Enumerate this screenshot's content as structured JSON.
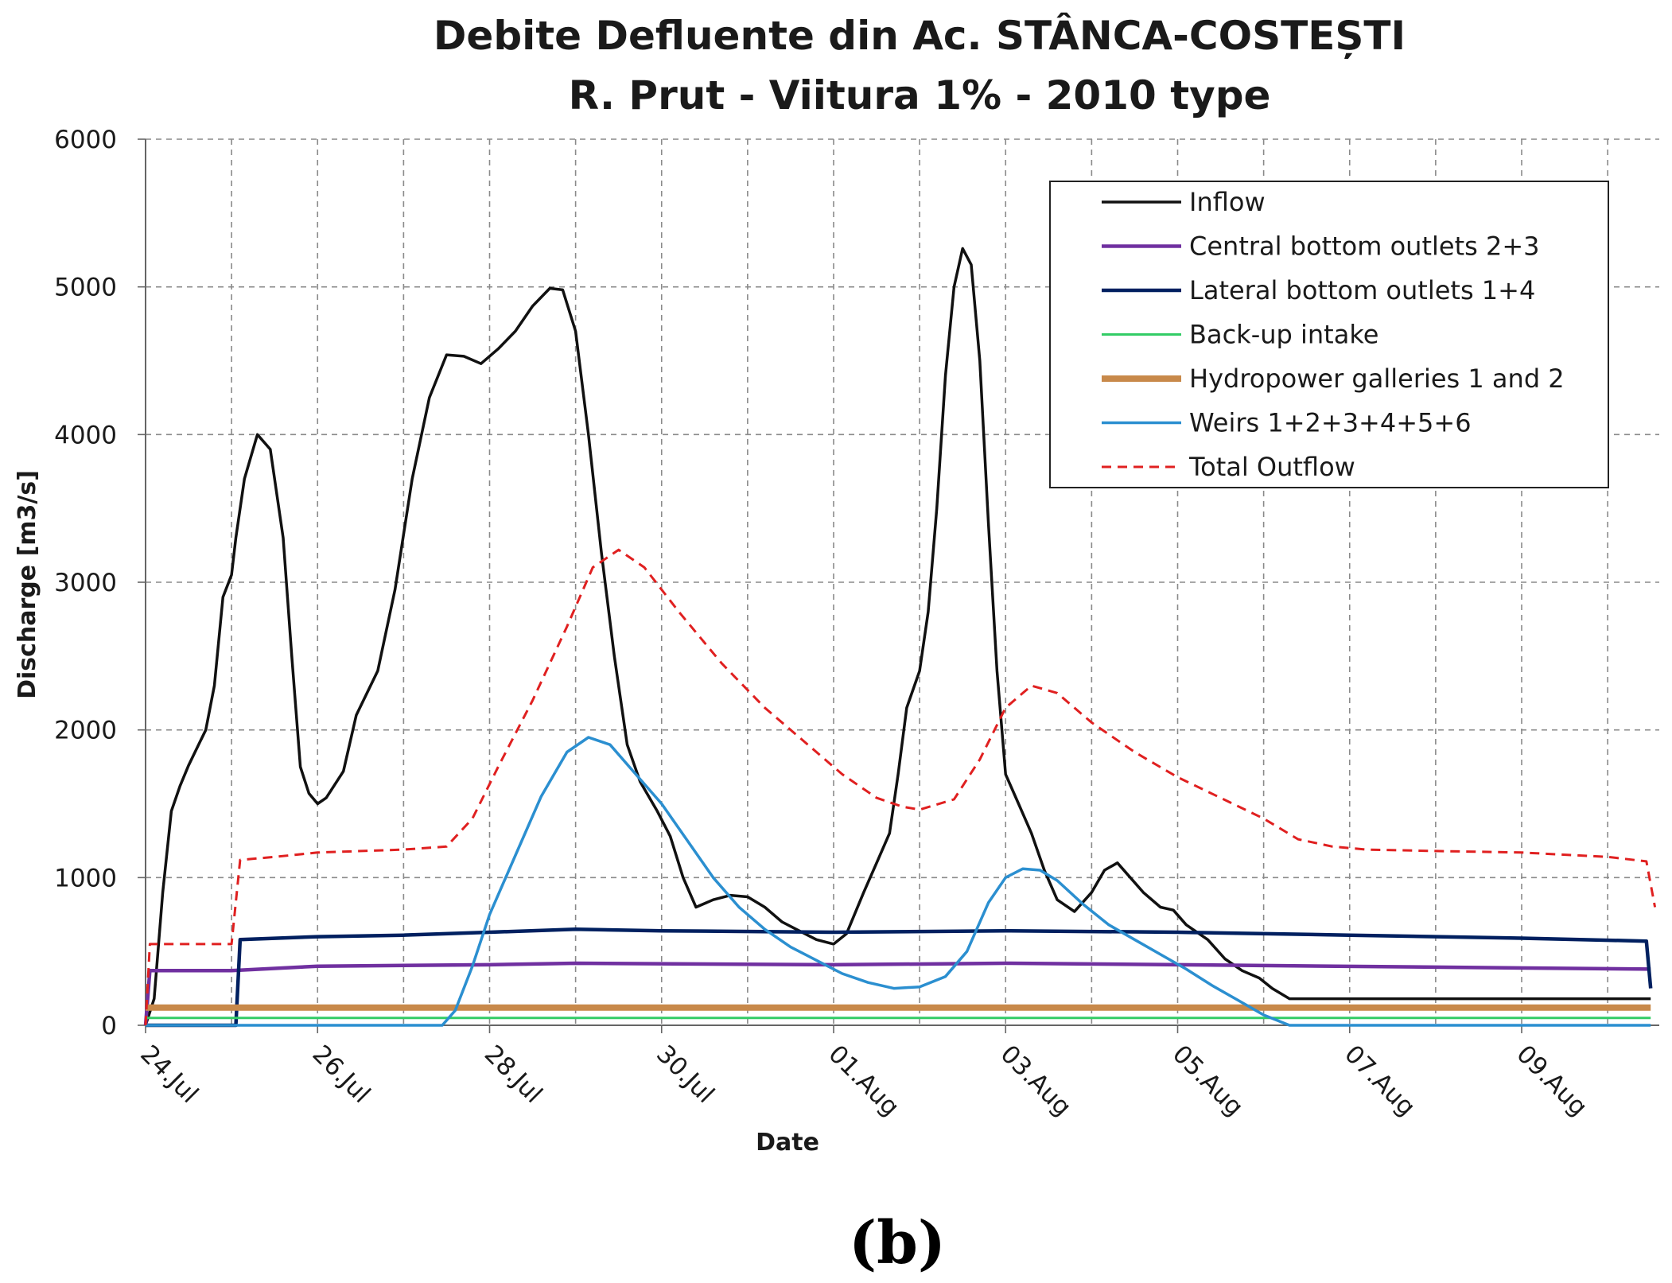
{
  "chart_data": {
    "type": "line",
    "title": "Debite Defluente din Ac. STÂNCA-COSTEȘTI",
    "subtitle": "R. Prut - Viitura 1% - 2010 type",
    "xlabel": "Date",
    "ylabel": "Discharge [m3/s]",
    "caption": "(b)",
    "xlim": [
      0,
      17.6
    ],
    "ylim": [
      0,
      6000
    ],
    "grid": true,
    "legend_position": "top-right",
    "yticks": [
      {
        "value": 0,
        "label": "0"
      },
      {
        "value": 1000,
        "label": "1000"
      },
      {
        "value": 2000,
        "label": "2000"
      },
      {
        "value": 3000,
        "label": "3000"
      },
      {
        "value": 4000,
        "label": "4000"
      },
      {
        "value": 5000,
        "label": "5000"
      },
      {
        "value": 6000,
        "label": "6000"
      }
    ],
    "xticks": [
      {
        "value": 0,
        "label": "24.Jul"
      },
      {
        "value": 2,
        "label": "26.Jul"
      },
      {
        "value": 4,
        "label": "28.Jul"
      },
      {
        "value": 6,
        "label": "30.Jul"
      },
      {
        "value": 8,
        "label": "01.Aug"
      },
      {
        "value": 10,
        "label": "03.Aug"
      },
      {
        "value": 12,
        "label": "05.Aug"
      },
      {
        "value": 14,
        "label": "07.Aug"
      },
      {
        "value": 16,
        "label": "09.Aug"
      }
    ],
    "x_minor_grid": [
      1,
      3,
      5,
      7,
      9,
      11,
      13,
      15,
      17
    ],
    "x_units": "days from 24.Jul",
    "series": [
      {
        "name": "Inflow",
        "color": "#111111",
        "width": 3.5,
        "dash": "",
        "points": [
          [
            0,
            0
          ],
          [
            0.1,
            180
          ],
          [
            0.2,
            900
          ],
          [
            0.3,
            1450
          ],
          [
            0.4,
            1620
          ],
          [
            0.5,
            1760
          ],
          [
            0.6,
            1880
          ],
          [
            0.7,
            2000
          ],
          [
            0.8,
            2300
          ],
          [
            0.9,
            2900
          ],
          [
            1.0,
            3050
          ],
          [
            1.05,
            3300
          ],
          [
            1.15,
            3700
          ],
          [
            1.3,
            4000
          ],
          [
            1.45,
            3900
          ],
          [
            1.6,
            3300
          ],
          [
            1.7,
            2500
          ],
          [
            1.8,
            1750
          ],
          [
            1.9,
            1570
          ],
          [
            2.0,
            1500
          ],
          [
            2.1,
            1540
          ],
          [
            2.3,
            1720
          ],
          [
            2.45,
            2100
          ],
          [
            2.7,
            2400
          ],
          [
            2.9,
            2950
          ],
          [
            3.1,
            3700
          ],
          [
            3.3,
            4250
          ],
          [
            3.5,
            4540
          ],
          [
            3.7,
            4530
          ],
          [
            3.9,
            4480
          ],
          [
            4.1,
            4580
          ],
          [
            4.3,
            4700
          ],
          [
            4.5,
            4870
          ],
          [
            4.7,
            4990
          ],
          [
            4.85,
            4980
          ],
          [
            5.0,
            4700
          ],
          [
            5.15,
            4000
          ],
          [
            5.3,
            3200
          ],
          [
            5.45,
            2500
          ],
          [
            5.6,
            1900
          ],
          [
            5.75,
            1650
          ],
          [
            5.95,
            1450
          ],
          [
            6.1,
            1280
          ],
          [
            6.25,
            1000
          ],
          [
            6.4,
            800
          ],
          [
            6.6,
            850
          ],
          [
            6.8,
            880
          ],
          [
            7.0,
            870
          ],
          [
            7.2,
            800
          ],
          [
            7.4,
            700
          ],
          [
            7.6,
            640
          ],
          [
            7.8,
            580
          ],
          [
            8.0,
            550
          ],
          [
            8.15,
            620
          ],
          [
            8.35,
            900
          ],
          [
            8.5,
            1100
          ],
          [
            8.65,
            1300
          ],
          [
            8.75,
            1700
          ],
          [
            8.85,
            2150
          ],
          [
            9.0,
            2400
          ],
          [
            9.1,
            2800
          ],
          [
            9.2,
            3500
          ],
          [
            9.3,
            4400
          ],
          [
            9.4,
            5000
          ],
          [
            9.5,
            5260
          ],
          [
            9.6,
            5150
          ],
          [
            9.7,
            4500
          ],
          [
            9.8,
            3400
          ],
          [
            9.9,
            2400
          ],
          [
            10.0,
            1700
          ],
          [
            10.15,
            1500
          ],
          [
            10.3,
            1300
          ],
          [
            10.45,
            1050
          ],
          [
            10.6,
            850
          ],
          [
            10.8,
            770
          ],
          [
            11.0,
            900
          ],
          [
            11.15,
            1050
          ],
          [
            11.3,
            1100
          ],
          [
            11.45,
            1000
          ],
          [
            11.6,
            900
          ],
          [
            11.8,
            800
          ],
          [
            11.95,
            780
          ],
          [
            12.1,
            680
          ],
          [
            12.35,
            580
          ],
          [
            12.55,
            450
          ],
          [
            12.75,
            370
          ],
          [
            12.95,
            320
          ],
          [
            13.1,
            250
          ],
          [
            13.3,
            180
          ],
          [
            14.0,
            180
          ],
          [
            17.5,
            180
          ]
        ]
      },
      {
        "name": "Central bottom outlets 2+3",
        "color": "#7030a0",
        "width": 4.5,
        "dash": "",
        "points": [
          [
            0,
            0
          ],
          [
            0.05,
            370
          ],
          [
            1.0,
            370
          ],
          [
            2.0,
            400
          ],
          [
            4.0,
            410
          ],
          [
            5.0,
            420
          ],
          [
            8.0,
            410
          ],
          [
            10.0,
            420
          ],
          [
            12.0,
            410
          ],
          [
            17.5,
            380
          ]
        ]
      },
      {
        "name": "Lateral bottom outlets 1+4",
        "color": "#002060",
        "width": 4.5,
        "dash": "",
        "points": [
          [
            0,
            0
          ],
          [
            1.05,
            0
          ],
          [
            1.1,
            580
          ],
          [
            2.0,
            600
          ],
          [
            3.0,
            610
          ],
          [
            4.0,
            630
          ],
          [
            5.0,
            650
          ],
          [
            6.0,
            640
          ],
          [
            8.0,
            630
          ],
          [
            10.0,
            640
          ],
          [
            12.0,
            630
          ],
          [
            14.0,
            610
          ],
          [
            16.0,
            590
          ],
          [
            17.45,
            570
          ],
          [
            17.5,
            250
          ]
        ]
      },
      {
        "name": "Back-up intake",
        "color": "#33cc66",
        "width": 3,
        "dash": "",
        "points": [
          [
            0,
            50
          ],
          [
            17.5,
            50
          ]
        ]
      },
      {
        "name": "Hydropower galleries 1 and 2",
        "color": "#c8894a",
        "width": 8,
        "dash": "",
        "points": [
          [
            0,
            120
          ],
          [
            17.5,
            120
          ]
        ]
      },
      {
        "name": "Weirs 1+2+3+4+5+6",
        "color": "#2b8fd0",
        "width": 3.5,
        "dash": "",
        "points": [
          [
            0,
            0
          ],
          [
            3.45,
            0
          ],
          [
            3.6,
            100
          ],
          [
            3.8,
            400
          ],
          [
            4.0,
            750
          ],
          [
            4.3,
            1150
          ],
          [
            4.6,
            1550
          ],
          [
            4.9,
            1850
          ],
          [
            5.15,
            1950
          ],
          [
            5.4,
            1900
          ],
          [
            5.7,
            1700
          ],
          [
            6.0,
            1500
          ],
          [
            6.3,
            1250
          ],
          [
            6.6,
            1000
          ],
          [
            6.9,
            800
          ],
          [
            7.2,
            650
          ],
          [
            7.5,
            530
          ],
          [
            7.8,
            440
          ],
          [
            8.1,
            350
          ],
          [
            8.4,
            290
          ],
          [
            8.7,
            250
          ],
          [
            9.0,
            260
          ],
          [
            9.3,
            330
          ],
          [
            9.55,
            500
          ],
          [
            9.8,
            830
          ],
          [
            10.0,
            1000
          ],
          [
            10.2,
            1060
          ],
          [
            10.4,
            1050
          ],
          [
            10.6,
            980
          ],
          [
            10.9,
            820
          ],
          [
            11.2,
            680
          ],
          [
            11.5,
            580
          ],
          [
            11.8,
            480
          ],
          [
            12.1,
            380
          ],
          [
            12.4,
            270
          ],
          [
            12.7,
            170
          ],
          [
            13.0,
            70
          ],
          [
            13.3,
            0
          ],
          [
            17.5,
            0
          ]
        ]
      },
      {
        "name": "Total Outflow",
        "color": "#e02020",
        "width": 3,
        "dash": "12,8",
        "points": [
          [
            0,
            0
          ],
          [
            0.05,
            550
          ],
          [
            1.0,
            550
          ],
          [
            1.1,
            1120
          ],
          [
            1.5,
            1140
          ],
          [
            2.0,
            1170
          ],
          [
            3.0,
            1190
          ],
          [
            3.5,
            1210
          ],
          [
            3.8,
            1400
          ],
          [
            4.1,
            1750
          ],
          [
            4.5,
            2200
          ],
          [
            4.9,
            2700
          ],
          [
            5.2,
            3100
          ],
          [
            5.5,
            3220
          ],
          [
            5.8,
            3100
          ],
          [
            6.2,
            2800
          ],
          [
            6.7,
            2450
          ],
          [
            7.2,
            2150
          ],
          [
            7.7,
            1900
          ],
          [
            8.1,
            1700
          ],
          [
            8.5,
            1540
          ],
          [
            8.8,
            1480
          ],
          [
            9.0,
            1460
          ],
          [
            9.4,
            1530
          ],
          [
            9.7,
            1800
          ],
          [
            10.0,
            2150
          ],
          [
            10.3,
            2300
          ],
          [
            10.6,
            2250
          ],
          [
            11.0,
            2050
          ],
          [
            11.5,
            1850
          ],
          [
            12.0,
            1680
          ],
          [
            12.5,
            1540
          ],
          [
            13.0,
            1400
          ],
          [
            13.4,
            1260
          ],
          [
            13.8,
            1210
          ],
          [
            14.2,
            1190
          ],
          [
            15.0,
            1180
          ],
          [
            16.0,
            1170
          ],
          [
            17.0,
            1140
          ],
          [
            17.45,
            1110
          ],
          [
            17.55,
            800
          ]
        ]
      }
    ]
  }
}
